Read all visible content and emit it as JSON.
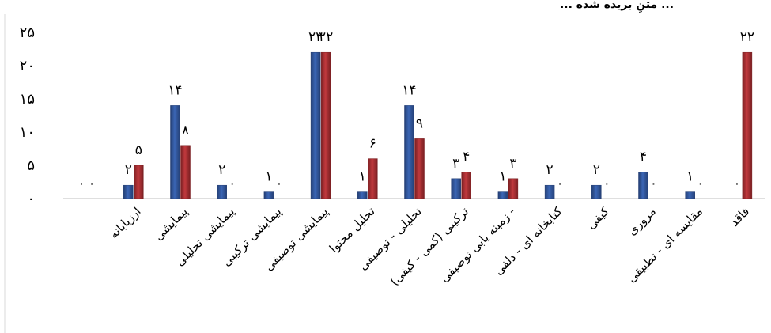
{
  "top_strip_text": "... متنِ بریده شده ...",
  "colors": {
    "series_a": "#3b66b5",
    "series_a_dark": "#243f74",
    "series_b": "#c0393d",
    "series_b_dark": "#7a1f22"
  },
  "chart_data": {
    "type": "bar",
    "grid": false,
    "legend": "none",
    "ylim": [
      0,
      25
    ],
    "yticks": [
      "۰",
      "۵",
      "۱۰",
      "۱۵",
      "۲۰",
      "۲۵"
    ],
    "ytick_values": [
      0,
      5,
      10,
      15,
      20,
      25
    ],
    "categories": [
      "",
      "ارزیابانه",
      "پیمایشی",
      "پیمایشی تحلیلی",
      "پیمایشی ترکیبی",
      "پیمایشی توصیفی",
      "تحلیل محتوا",
      "تحلیلی - توصیفی",
      "ترکیبی (کمی - کیفی)",
      "زمینه یابی توصیفی -",
      "کتابخانه ای - دلفی",
      "کیفی",
      "مروری",
      "مقایسه ای - تطبیقی",
      "فاقد"
    ],
    "series": [
      {
        "values": [
          0,
          2,
          14,
          2,
          1,
          22,
          1,
          14,
          3,
          1,
          2,
          2,
          4,
          1,
          0
        ],
        "labels": [
          "۰",
          "۲",
          "۱۴",
          "۲",
          "۱",
          "۲۲",
          "۱",
          "۱۴",
          "۳",
          "۱",
          "۲",
          "۲",
          "۴",
          "۱",
          "۰"
        ]
      },
      {
        "values": [
          0,
          5,
          8,
          0,
          0,
          22,
          6,
          9,
          4,
          3,
          0,
          0,
          0,
          0,
          22
        ],
        "labels": [
          "۰",
          "۵",
          "۸",
          "۰",
          "۰",
          "۲۲",
          "۶",
          "۹",
          "۴",
          "۳",
          "۰",
          "۰",
          "۰",
          "۰",
          "۲۲"
        ]
      }
    ]
  }
}
